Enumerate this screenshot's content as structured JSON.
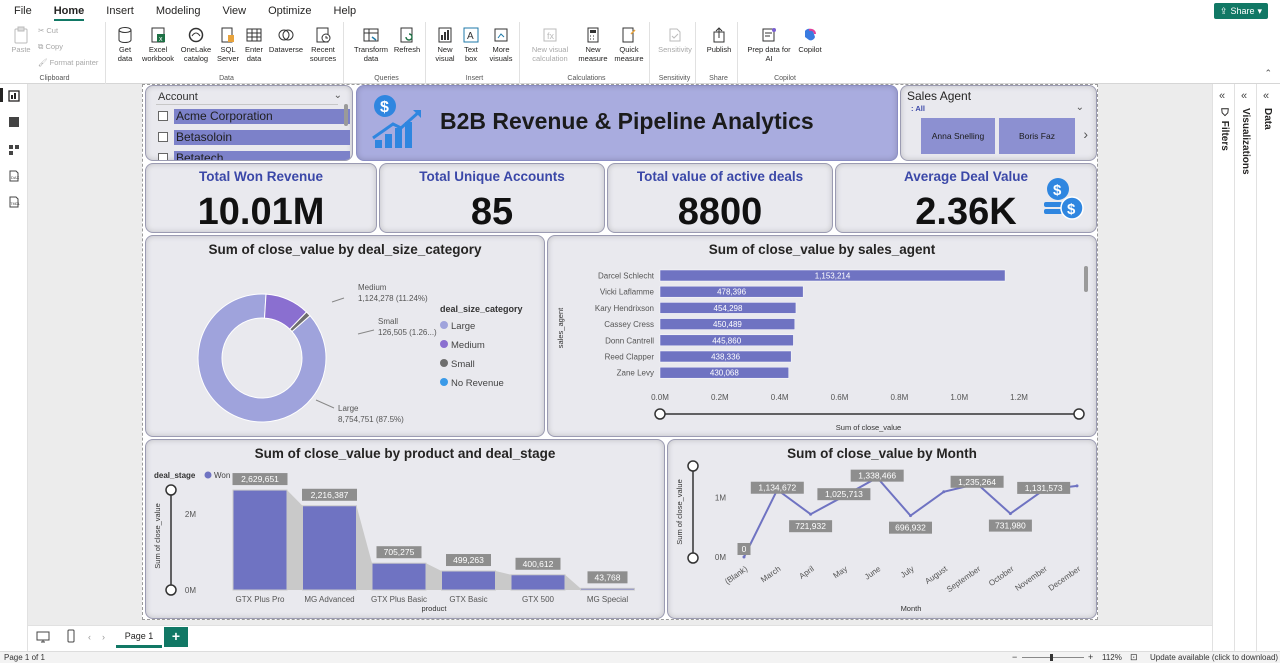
{
  "menu": {
    "tabs": [
      "File",
      "Home",
      "Insert",
      "Modeling",
      "View",
      "Optimize",
      "Help"
    ],
    "active": "Home",
    "share": "Share"
  },
  "ribbon": {
    "clipboard": {
      "label": "Clipboard",
      "paste": "Paste",
      "cut": "Cut",
      "copy": "Copy",
      "format_painter": "Format painter"
    },
    "data": {
      "label": "Data",
      "get_data": "Get data",
      "excel": "Excel workbook",
      "onelake": "OneLake catalog",
      "sql": "SQL Server",
      "enter": "Enter data",
      "dataverse": "Dataverse",
      "recent": "Recent sources"
    },
    "queries": {
      "label": "Queries",
      "transform": "Transform data",
      "refresh": "Refresh"
    },
    "insert": {
      "label": "Insert",
      "new_visual": "New visual",
      "text_box": "Text box",
      "more_visuals": "More visuals"
    },
    "calculations": {
      "label": "Calculations",
      "new_visual_calc": "New visual calculation",
      "new_measure": "New measure",
      "quick_measure": "Quick measure"
    },
    "sensitivity": {
      "label": "Sensitivity",
      "btn": "Sensitivity"
    },
    "share": {
      "label": "Share",
      "publish": "Publish"
    },
    "copilot": {
      "label": "Copilot",
      "prep": "Prep data for AI",
      "copilot": "Copilot"
    }
  },
  "panes": {
    "filters": "Filters",
    "visualizations": "Visualizations",
    "data": "Data"
  },
  "slicer_account": {
    "title": "Account",
    "items": [
      "Acme Corporation",
      "Betasoloin",
      "Betatech"
    ]
  },
  "header": {
    "title": "B2B Revenue & Pipeline Analytics"
  },
  "slicer_agent": {
    "title": "Sales Agent",
    "all": "All",
    "buttons": [
      "Anna Snelling",
      "Boris Faz"
    ]
  },
  "kpis": [
    {
      "label": "Total Won Revenue",
      "value": "10.01M"
    },
    {
      "label": "Total Unique Accounts",
      "value": "85"
    },
    {
      "label": "Total value of active deals",
      "value": "8800"
    },
    {
      "label": "Average Deal Value",
      "value": "2.36K"
    }
  ],
  "colors": {
    "primary": "#9fa3dc",
    "accent": "#6f73c2",
    "medium": "#8a6fd0",
    "small": "#6e6e6e",
    "no_revenue": "#3a9ae8",
    "title_blue": "#3b48a8"
  },
  "chart_data": [
    {
      "type": "pie",
      "title": "Sum of close_value by deal_size_category",
      "legend_title": "deal_size_category",
      "legend": [
        "Large",
        "Medium",
        "Small",
        "No Revenue"
      ],
      "slices": [
        {
          "name": "Large",
          "value": 8754751,
          "label": "8,754,751 (87.5%)"
        },
        {
          "name": "Medium",
          "value": 1124278,
          "label": "1,124,278 (11.24%)"
        },
        {
          "name": "Small",
          "value": 126505,
          "label": "126,505 (1.26...)"
        },
        {
          "name": "No Revenue",
          "value": 0
        }
      ]
    },
    {
      "type": "bar",
      "orientation": "horizontal",
      "title": "Sum of close_value by sales_agent",
      "xlabel": "Sum of close_value",
      "ylabel": "sales_agent",
      "categories": [
        "Darcel Schlecht",
        "Vicki Laflamme",
        "Kary Hendrixson",
        "Cassey Cress",
        "Donn Cantrell",
        "Reed Clapper",
        "Zane Levy"
      ],
      "values": [
        1153214,
        478396,
        454298,
        450489,
        445860,
        438336,
        430068
      ],
      "value_labels": [
        "1,153,214",
        "478,396",
        "454,298",
        "450,489",
        "445,860",
        "438,336",
        "430,068"
      ],
      "xlim": [
        0,
        1300000
      ],
      "xticks": [
        "0.0M",
        "0.2M",
        "0.4M",
        "0.6M",
        "0.8M",
        "1.0M",
        "1.2M"
      ]
    },
    {
      "type": "bar",
      "title": "Sum of close_value by product and deal_stage",
      "legend_title": "deal_stage",
      "series": [
        {
          "name": "Won",
          "values": [
            2629651,
            2216387,
            705275,
            499263,
            400612,
            43768
          ]
        }
      ],
      "categories": [
        "GTX Plus Pro",
        "MG Advanced",
        "GTX Plus Basic",
        "GTX Basic",
        "GTX 500",
        "MG Special"
      ],
      "value_labels": [
        "2,629,651",
        "2,216,387",
        "705,275",
        "499,263",
        "400,612",
        "43,768"
      ],
      "xlabel": "product",
      "ylabel": "Sum of close_value",
      "ylim": [
        0,
        3000000
      ],
      "yticks": [
        "0M",
        "2M"
      ]
    },
    {
      "type": "line",
      "title": "Sum of close_value by Month",
      "xlabel": "Month",
      "ylabel": "Sum of close_value",
      "categories": [
        "(Blank)",
        "March",
        "April",
        "May",
        "June",
        "July",
        "August",
        "September",
        "October",
        "November",
        "December"
      ],
      "values": [
        0,
        1134672,
        721932,
        1025713,
        1338466,
        696932,
        1100000,
        1235264,
        731980,
        1131573,
        1200000
      ],
      "value_labels": [
        "0",
        "1,134,672",
        "721,932",
        "1,025,713",
        "1,338,466",
        "696,932",
        "",
        "1,235,264",
        "731,980",
        "1,131,573",
        ""
      ],
      "ylim": [
        0,
        1400000
      ],
      "yticks": [
        "0M",
        "1M"
      ]
    }
  ],
  "pages": {
    "tab": "Page 1",
    "add": "+"
  },
  "status": {
    "page": "Page 1 of 1",
    "zoom": "112%",
    "update": "Update available (click to download)"
  }
}
